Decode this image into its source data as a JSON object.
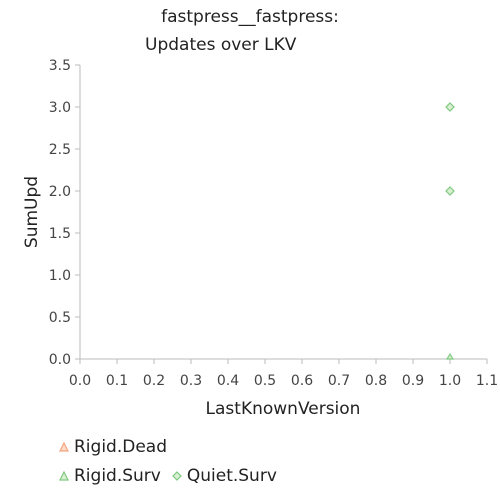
{
  "chart_data": {
    "type": "scatter",
    "title_lines": [
      "fastpress__fastpress:",
      "Updates over LKV"
    ],
    "xlabel": "LastKnownVersion",
    "ylabel": "SumUpd",
    "xlim": [
      0.0,
      1.1
    ],
    "ylim": [
      0.0,
      3.5
    ],
    "x_ticks": [
      "0.0",
      "0.1",
      "0.2",
      "0.3",
      "0.4",
      "0.5",
      "0.6",
      "0.7",
      "0.8",
      "0.9",
      "1.0",
      "1.1"
    ],
    "y_ticks": [
      "0.0",
      "0.5",
      "1.0",
      "1.5",
      "2.0",
      "2.5",
      "3.0",
      "3.5"
    ],
    "grid": false,
    "legend_position": "bottom-left",
    "series": [
      {
        "name": "Rigid.Dead",
        "marker": "triangle",
        "color": "#f4a582",
        "points": []
      },
      {
        "name": "Rigid.Surv",
        "marker": "triangle",
        "color": "#7fc97f",
        "points": [
          {
            "x": 1.0,
            "y": 0.0
          }
        ]
      },
      {
        "name": "Quiet.Surv",
        "marker": "diamond",
        "color": "#7fc97f",
        "points": [
          {
            "x": 1.0,
            "y": 3.0
          },
          {
            "x": 1.0,
            "y": 2.0
          }
        ]
      }
    ]
  }
}
